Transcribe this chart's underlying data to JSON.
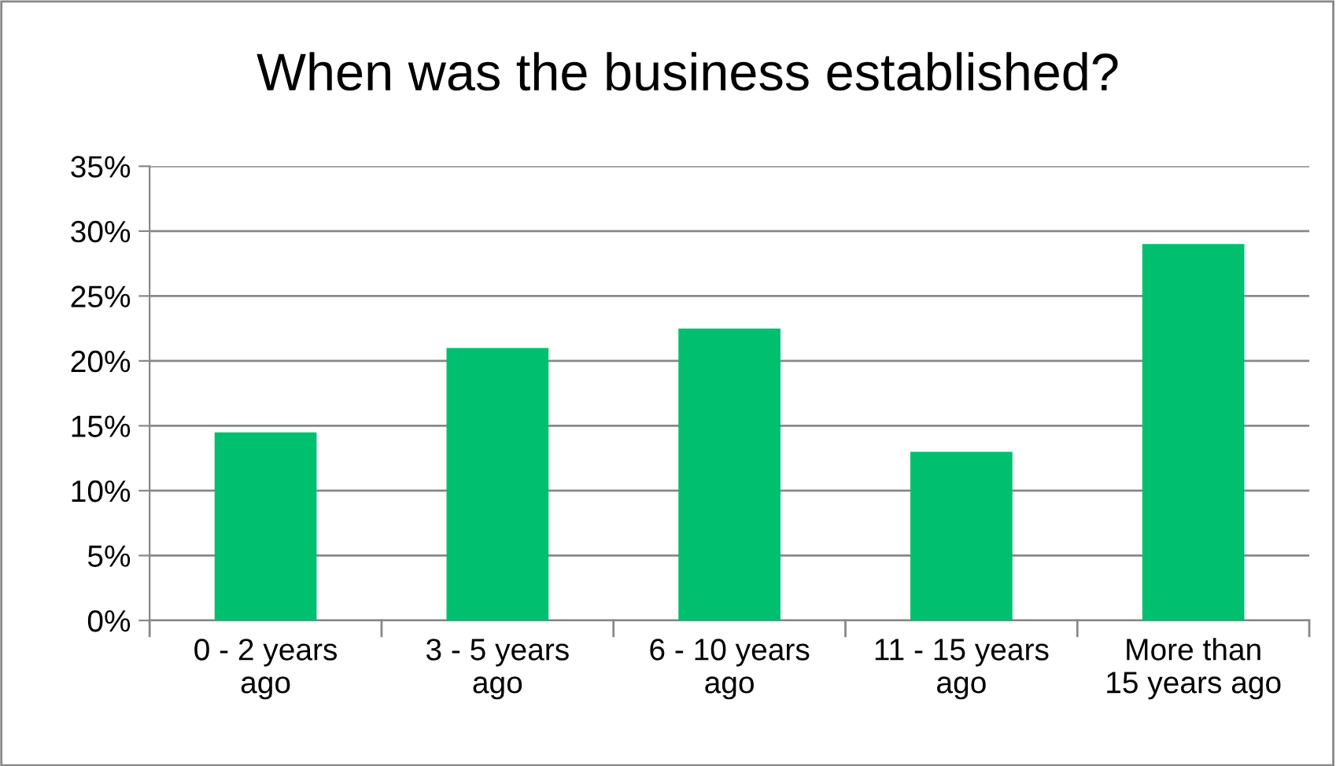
{
  "chart_data": {
    "type": "bar",
    "title": "When was the business established?",
    "categories": [
      "0 - 2 years\nago",
      "3 - 5 years\nago",
      "6 - 10 years\nago",
      "11 - 15 years\nago",
      "More than\n15 years ago"
    ],
    "values": [
      0.145,
      0.21,
      0.225,
      0.13,
      0.29
    ],
    "color": "#00c070",
    "ylim": [
      0,
      0.35
    ],
    "yticks": [
      {
        "value": 0,
        "label": "0%"
      },
      {
        "value": 0.05,
        "label": "5%"
      },
      {
        "value": 0.1,
        "label": "10%"
      },
      {
        "value": 0.15,
        "label": "15%"
      },
      {
        "value": 0.2,
        "label": "20%"
      },
      {
        "value": 0.25,
        "label": "25%"
      },
      {
        "value": 0.3,
        "label": "30%"
      },
      {
        "value": 0.35,
        "label": "35%"
      }
    ],
    "grid": "y"
  }
}
